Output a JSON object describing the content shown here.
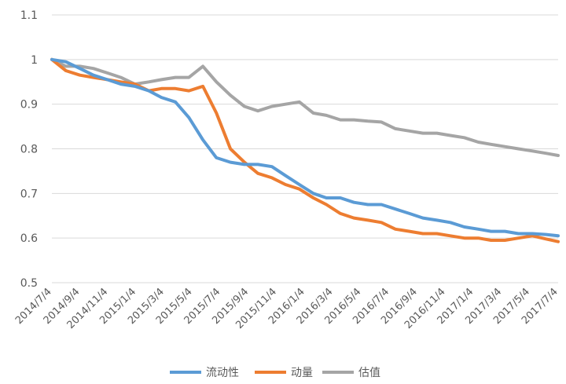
{
  "chart_data": {
    "type": "line",
    "title": "",
    "xlabel": "",
    "ylabel": "",
    "ylim": [
      0.5,
      1.1
    ],
    "yticks": [
      "0.5",
      "0.6",
      "0.7",
      "0.8",
      "0.9",
      "1",
      "1.1"
    ],
    "grid": true,
    "legend_position": "bottom",
    "x_tick_labels": [
      "2014/7/4",
      "2014/9/4",
      "2014/11/4",
      "2015/1/4",
      "2015/3/4",
      "2015/5/4",
      "2015/7/4",
      "2015/9/4",
      "2015/11/4",
      "2016/1/4",
      "2016/3/4",
      "2016/5/4",
      "2016/7/4",
      "2016/9/4",
      "2016/11/4",
      "2017/1/4",
      "2017/3/4",
      "2017/5/4",
      "2017/7/4"
    ],
    "x": [
      "2014/7/4",
      "2014/8/4",
      "2014/9/4",
      "2014/10/4",
      "2014/11/4",
      "2014/12/4",
      "2015/1/4",
      "2015/2/4",
      "2015/3/4",
      "2015/4/4",
      "2015/5/4",
      "2015/6/4",
      "2015/7/4",
      "2015/8/4",
      "2015/9/4",
      "2015/10/4",
      "2015/11/4",
      "2015/12/4",
      "2016/1/4",
      "2016/2/4",
      "2016/3/4",
      "2016/4/4",
      "2016/5/4",
      "2016/6/4",
      "2016/7/4",
      "2016/8/4",
      "2016/9/4",
      "2016/10/4",
      "2016/11/4",
      "2016/12/4",
      "2017/1/4",
      "2017/2/4",
      "2017/3/4",
      "2017/4/4",
      "2017/5/4",
      "2017/6/4",
      "2017/7/4",
      "2017/7/31"
    ],
    "series": [
      {
        "name": "流动性",
        "color": "#5b9bd5",
        "values": [
          1.0,
          0.995,
          0.98,
          0.965,
          0.955,
          0.945,
          0.94,
          0.93,
          0.915,
          0.905,
          0.87,
          0.82,
          0.78,
          0.77,
          0.765,
          0.765,
          0.76,
          0.74,
          0.72,
          0.7,
          0.69,
          0.69,
          0.68,
          0.675,
          0.675,
          0.665,
          0.655,
          0.645,
          0.64,
          0.635,
          0.625,
          0.62,
          0.615,
          0.615,
          0.61,
          0.61,
          0.608,
          0.605
        ]
      },
      {
        "name": "动量",
        "color": "#ed7d31",
        "values": [
          1.0,
          0.975,
          0.965,
          0.96,
          0.955,
          0.95,
          0.945,
          0.93,
          0.935,
          0.935,
          0.93,
          0.94,
          0.88,
          0.8,
          0.77,
          0.745,
          0.735,
          0.72,
          0.71,
          0.69,
          0.675,
          0.655,
          0.645,
          0.64,
          0.635,
          0.62,
          0.615,
          0.61,
          0.61,
          0.605,
          0.6,
          0.6,
          0.595,
          0.595,
          0.6,
          0.605,
          0.598,
          0.592
        ]
      },
      {
        "name": "估值",
        "color": "#a5a5a5",
        "values": [
          1.0,
          0.985,
          0.985,
          0.98,
          0.97,
          0.96,
          0.945,
          0.95,
          0.955,
          0.96,
          0.96,
          0.985,
          0.95,
          0.92,
          0.895,
          0.885,
          0.895,
          0.9,
          0.905,
          0.88,
          0.875,
          0.865,
          0.865,
          0.862,
          0.86,
          0.845,
          0.84,
          0.835,
          0.835,
          0.83,
          0.825,
          0.815,
          0.81,
          0.805,
          0.8,
          0.795,
          0.79,
          0.785
        ]
      }
    ]
  }
}
